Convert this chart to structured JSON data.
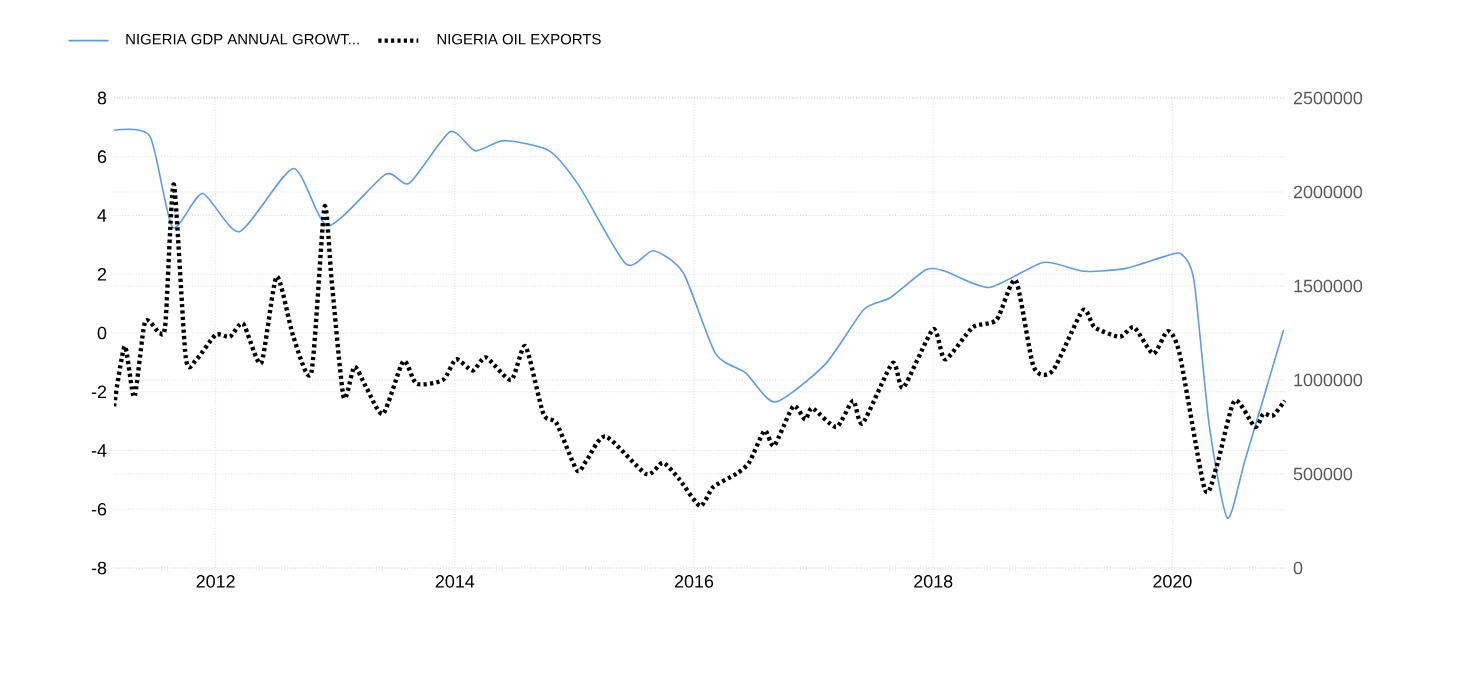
{
  "chart_data": {
    "type": "line",
    "series": [
      {
        "name": "NIGERIA GDP ANNUAL GROWT...",
        "color": "#5b9bef",
        "line_style": "solid",
        "x": [
          2011.15,
          2011.45,
          2011.64,
          2011.89,
          2012.2,
          2012.65,
          2012.94,
          2013.42,
          2013.62,
          2013.96,
          2014.17,
          2014.41,
          2014.79,
          2015.04,
          2015.43,
          2015.66,
          2015.91,
          2016.18,
          2016.43,
          2016.68,
          2017.1,
          2017.42,
          2017.64,
          2017.94,
          2018.1,
          2018.47,
          2018.92,
          2019.26,
          2019.61,
          2019.93,
          2020.07,
          2020.18,
          2020.31,
          2020.46,
          2020.61,
          2020.93
        ],
        "values": [
          6.9,
          6.7,
          3.6,
          4.75,
          3.45,
          5.6,
          3.65,
          5.4,
          5.1,
          6.85,
          6.2,
          6.55,
          6.2,
          5.0,
          2.35,
          2.8,
          2.05,
          -0.7,
          -1.35,
          -2.35,
          -1.05,
          0.8,
          1.2,
          2.15,
          2.1,
          1.55,
          2.4,
          2.1,
          2.2,
          2.6,
          2.7,
          1.8,
          -3.2,
          -6.3,
          -4.3,
          0.1
        ]
      },
      {
        "name": "NIGERIA OIL EXPORTS",
        "color": "#000000",
        "line_style": "dotted",
        "axis": "y2",
        "x": [
          2011.15,
          2011.24,
          2011.32,
          2011.41,
          2011.53,
          2011.58,
          2011.65,
          2011.75,
          2011.84,
          2012.0,
          2012.12,
          2012.23,
          2012.38,
          2012.51,
          2012.65,
          2012.8,
          2012.91,
          2012.97,
          2013.07,
          2013.16,
          2013.26,
          2013.4,
          2013.57,
          2013.68,
          2013.9,
          2014.01,
          2014.15,
          2014.26,
          2014.47,
          2014.59,
          2014.74,
          2014.85,
          2015.02,
          2015.1,
          2015.26,
          2015.6,
          2015.74,
          2015.88,
          2016.05,
          2016.16,
          2016.35,
          2016.46,
          2016.59,
          2016.67,
          2016.83,
          2016.93,
          2016.99,
          2017.19,
          2017.33,
          2017.41,
          2017.66,
          2017.75,
          2018.0,
          2018.1,
          2018.33,
          2018.53,
          2018.69,
          2018.84,
          2019.0,
          2019.25,
          2019.35,
          2019.56,
          2019.68,
          2019.84,
          2019.96,
          2020.06,
          2020.27,
          2020.37,
          2020.52,
          2020.69,
          2020.76,
          2020.84,
          2020.94
        ],
        "values": [
          860000,
          1180000,
          910000,
          1310000,
          1250000,
          1300000,
          2040000,
          1120000,
          1110000,
          1240000,
          1230000,
          1300000,
          1090000,
          1550000,
          1230000,
          1040000,
          1920000,
          1530000,
          910000,
          1070000,
          960000,
          820000,
          1100000,
          980000,
          1000000,
          1110000,
          1050000,
          1120000,
          1000000,
          1180000,
          820000,
          770000,
          520000,
          570000,
          700000,
          500000,
          560000,
          470000,
          330000,
          430000,
          500000,
          560000,
          730000,
          650000,
          860000,
          790000,
          850000,
          750000,
          890000,
          770000,
          1090000,
          960000,
          1270000,
          1110000,
          1280000,
          1320000,
          1530000,
          1070000,
          1050000,
          1370000,
          1280000,
          1230000,
          1280000,
          1140000,
          1260000,
          1140000,
          420000,
          540000,
          890000,
          750000,
          820000,
          810000,
          890000
        ]
      }
    ],
    "xlim": [
      2011.15,
      2020.95
    ],
    "xticks": [
      2012,
      2014,
      2016,
      2018,
      2020
    ],
    "ylim": [
      -8,
      8
    ],
    "yticks": [
      -8,
      -6,
      -4,
      -2,
      0,
      2,
      4,
      6,
      8
    ],
    "y2lim": [
      0,
      2500000
    ],
    "y2ticks": [
      0,
      500000,
      1000000,
      1500000,
      2000000,
      2500000
    ],
    "grid": true,
    "legend": "top left"
  }
}
